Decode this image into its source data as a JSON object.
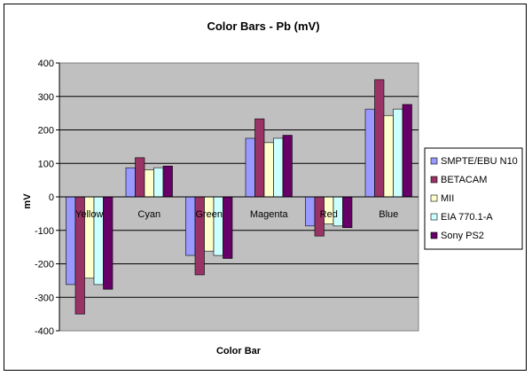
{
  "chart_data": {
    "type": "bar",
    "title": "Color Bars - Pb (mV)",
    "xlabel": "Color Bar",
    "ylabel": "mV",
    "ylim": [
      -400,
      400
    ],
    "yticks": [
      400,
      300,
      200,
      100,
      0,
      -100,
      -200,
      -300,
      -400
    ],
    "grid": true,
    "legend_position": "right",
    "plot_background": "#c0c0c0",
    "categories": [
      "Yellow",
      "Cyan",
      "Green",
      "Magenta",
      "Red",
      "Blue"
    ],
    "series": [
      {
        "name": "SMPTE/EBU N10",
        "color": "#9999ff",
        "values": [
          -262,
          87,
          -175,
          175,
          -87,
          262
        ]
      },
      {
        "name": "BETACAM",
        "color": "#993366",
        "values": [
          -350,
          117,
          -233,
          233,
          -117,
          350
        ]
      },
      {
        "name": "MII",
        "color": "#ffffcc",
        "values": [
          -243,
          81,
          -162,
          162,
          -81,
          243
        ]
      },
      {
        "name": "EIA 770.1-A",
        "color": "#ccffff",
        "values": [
          -262,
          87,
          -175,
          175,
          -87,
          262
        ]
      },
      {
        "name": "Sony PS2",
        "color": "#660066",
        "values": [
          -276,
          92,
          -184,
          184,
          -92,
          276
        ]
      }
    ]
  }
}
